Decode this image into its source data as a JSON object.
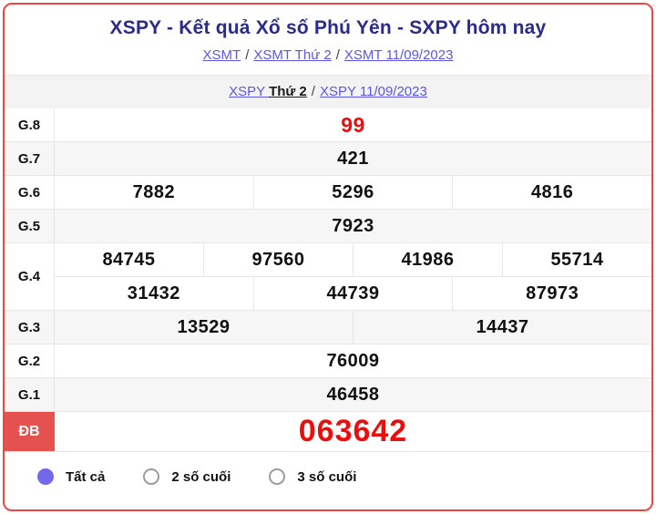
{
  "colors": {
    "border_red": "#ee4743",
    "db_badge_red": "#e4514e",
    "number_red": "#ee0d0d",
    "link_color": "#5b57e3",
    "title_navy": "#2b2b8a",
    "radio_fill": "#7468ea"
  },
  "header": {
    "title": "XSPY - Kết quả Xổ số Phú Yên - SXPY hôm nay",
    "separator": "/",
    "breadcrumb_region": {
      "items": [
        "XSMT",
        "XSMT Thứ 2",
        "XSMT 11/09/2023"
      ]
    },
    "breadcrumb_province": {
      "first_link_text": "XSPY",
      "first_plain_text": "Thứ 2",
      "second": "XSPY 11/09/2023"
    }
  },
  "results": {
    "rows": [
      {
        "label": "G.8",
        "highlight": true,
        "lines": [
          [
            "99"
          ]
        ]
      },
      {
        "label": "G.7",
        "lines": [
          [
            "421"
          ]
        ]
      },
      {
        "label": "G.6",
        "lines": [
          [
            "7882",
            "5296",
            "4816"
          ]
        ]
      },
      {
        "label": "G.5",
        "lines": [
          [
            "7923"
          ]
        ]
      },
      {
        "label": "G.4",
        "lines": [
          [
            "84745",
            "97560",
            "41986",
            "55714"
          ],
          [
            "31432",
            "44739",
            "87973"
          ]
        ]
      },
      {
        "label": "G.3",
        "lines": [
          [
            "13529",
            "14437"
          ]
        ]
      },
      {
        "label": "G.2",
        "lines": [
          [
            "76009"
          ]
        ]
      },
      {
        "label": "G.1",
        "lines": [
          [
            "46458"
          ]
        ]
      },
      {
        "label": "ĐB",
        "special": true,
        "lines": [
          [
            "063642"
          ]
        ]
      }
    ]
  },
  "filters": {
    "options": [
      {
        "label": "Tất cả",
        "selected": true
      },
      {
        "label": "2 số cuối",
        "selected": false
      },
      {
        "label": "3 số cuối",
        "selected": false
      }
    ]
  }
}
